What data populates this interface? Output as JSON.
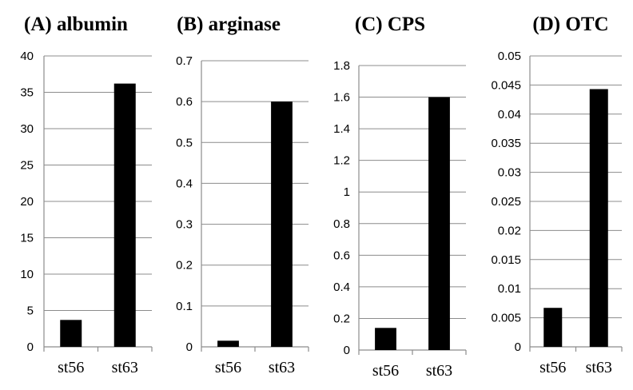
{
  "chart_data": [
    {
      "type": "bar",
      "title": "(A) albumin",
      "categories": [
        "st56",
        "st63"
      ],
      "values": [
        3.7,
        36.2
      ],
      "ylim": [
        0,
        40
      ],
      "yticks": [
        "0",
        "5",
        "10",
        "15",
        "20",
        "25",
        "30",
        "35",
        "40"
      ],
      "grid": true,
      "xlabel": "",
      "ylabel": ""
    },
    {
      "type": "bar",
      "title": "(B) arginase",
      "categories": [
        "st56",
        "st63"
      ],
      "values": [
        0.015,
        0.6
      ],
      "ylim": [
        0,
        0.7
      ],
      "yticks": [
        "0",
        "0.1",
        "0.2",
        "0.3",
        "0.4",
        "0.5",
        "0.6",
        "0.7"
      ],
      "grid": true,
      "xlabel": "",
      "ylabel": ""
    },
    {
      "type": "bar",
      "title": "(C) CPS",
      "categories": [
        "st56",
        "st63"
      ],
      "values": [
        0.14,
        1.6
      ],
      "ylim": [
        0,
        1.8
      ],
      "yticks": [
        "0",
        "0.2",
        "0.4",
        "0.6",
        "0.8",
        "1",
        "1.2",
        "1.4",
        "1.6",
        "1.8"
      ],
      "grid": true,
      "xlabel": "",
      "ylabel": ""
    },
    {
      "type": "bar",
      "title": "(D) OTC",
      "categories": [
        "st56",
        "st63"
      ],
      "values": [
        0.0067,
        0.0443
      ],
      "ylim": [
        0,
        0.05
      ],
      "yticks": [
        "0",
        "0.005",
        "0.01",
        "0.015",
        "0.02",
        "0.025",
        "0.03",
        "0.035",
        "0.04",
        "0.045",
        "0.05"
      ],
      "grid": true,
      "xlabel": "",
      "ylabel": ""
    }
  ]
}
